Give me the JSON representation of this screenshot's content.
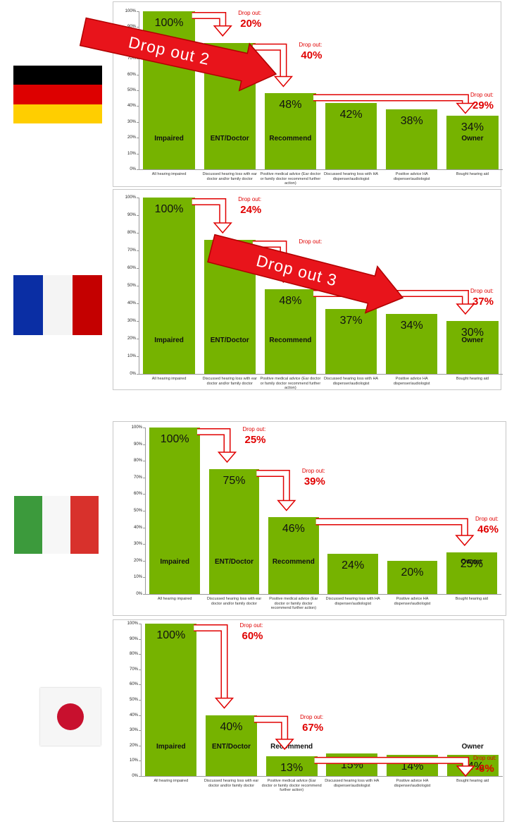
{
  "chart_data": [
    {
      "type": "bar",
      "color": "#76b300",
      "categories": [
        "All hearing impaired",
        "Discussed hearing loss with ear doctor and/or family doctor",
        "Positive medical advice (Ear doctor or family doctor recommend further action)",
        "Discussed hearing loss with HA dispenser/audiologist",
        "Positive advice HA dispenser/audiologist",
        "Bought hearing aid"
      ],
      "values": [
        100,
        80,
        48,
        42,
        38,
        34
      ],
      "value_labels": [
        "100%",
        null,
        "48%",
        "42%",
        "38%",
        "34%"
      ],
      "bar_labels": [
        "Impaired",
        "ENT/Doctor",
        "Recommend",
        null,
        null,
        "Owner"
      ],
      "annotations": [
        {
          "text": "Drop out:",
          "amount": "20%"
        },
        {
          "text": "Drop out:",
          "amount": "40%"
        },
        {
          "text": "Drop out:",
          "amount": "29%"
        }
      ],
      "big_arrow": "Drop out 2",
      "ylim": [
        0,
        100
      ],
      "yticks": [
        {
          "value": 0,
          "label": "0%"
        },
        {
          "value": 10,
          "label": "10%"
        },
        {
          "value": 20,
          "label": "20%"
        },
        {
          "value": 30,
          "label": "30%"
        },
        {
          "value": 40,
          "label": "40%"
        },
        {
          "value": 50,
          "label": "50%"
        },
        {
          "value": 60,
          "label": "60%"
        },
        {
          "value": 70,
          "label": "70%"
        },
        {
          "value": 80,
          "label": "80%"
        },
        {
          "value": 90,
          "label": "90%"
        },
        {
          "value": 100,
          "label": "100%"
        }
      ]
    },
    {
      "type": "bar",
      "color": "#76b300",
      "categories": [
        "All hearing impaired",
        "Discussed hearing loss with ear doctor and/or family doctor",
        "Positive medical advice (Ear doctor or family doctor recommend further action)",
        "Discussed hearing loss with HA dispenser/audiologist",
        "Positive advice HA dispenser/audiologist",
        "Bought hearing aid"
      ],
      "values": [
        100,
        76,
        48,
        37,
        34,
        30
      ],
      "value_labels": [
        "100%",
        null,
        "48%",
        "37%",
        "34%",
        "30%"
      ],
      "bar_labels": [
        "Impaired",
        "ENT/Doctor",
        "Recommend",
        null,
        null,
        "Owner"
      ],
      "annotations": [
        {
          "text": "Drop out:",
          "amount": "24%"
        },
        {
          "text": "Drop out:",
          "amount": null
        },
        {
          "text": "Drop out:",
          "amount": "37%"
        }
      ],
      "big_arrow": "Drop out 3",
      "ylim": [
        0,
        100
      ],
      "yticks": [
        {
          "value": 0,
          "label": "0%"
        },
        {
          "value": 10,
          "label": "10%"
        },
        {
          "value": 20,
          "label": "20%"
        },
        {
          "value": 30,
          "label": "30%"
        },
        {
          "value": 40,
          "label": "40%"
        },
        {
          "value": 50,
          "label": "50%"
        },
        {
          "value": 60,
          "label": "60%"
        },
        {
          "value": 70,
          "label": "70%"
        },
        {
          "value": 80,
          "label": "80%"
        },
        {
          "value": 90,
          "label": "90%"
        },
        {
          "value": 100,
          "label": "100%"
        }
      ]
    },
    {
      "type": "bar",
      "color": "#76b300",
      "categories": [
        "All hearing impaired",
        "Discussed hearing loss with ear doctor and/or family doctor",
        "Positive medical advice (Ear doctor or family doctor recommend further action)",
        "Discussed hearing loss with HA dispenser/audiologist",
        "Positive advice HA dispenser/audiologist",
        "Bought hearing aid"
      ],
      "values": [
        100,
        75,
        46,
        24,
        20,
        25
      ],
      "value_labels": [
        "100%",
        "75%",
        "46%",
        "24%",
        "20%",
        "25%"
      ],
      "bar_labels": [
        "Impaired",
        "ENT/Doctor",
        "Recommend",
        null,
        null,
        "Owner"
      ],
      "annotations": [
        {
          "text": "Drop out:",
          "amount": "25%"
        },
        {
          "text": "Drop out:",
          "amount": "39%"
        },
        {
          "text": "Drop out:",
          "amount": "46%"
        }
      ],
      "ylim": [
        0,
        100
      ],
      "yticks": [
        {
          "value": 0,
          "label": "0%"
        },
        {
          "value": 10,
          "label": "10%"
        },
        {
          "value": 20,
          "label": "20%"
        },
        {
          "value": 30,
          "label": "30%"
        },
        {
          "value": 40,
          "label": "40%"
        },
        {
          "value": 50,
          "label": "50%"
        },
        {
          "value": 60,
          "label": "60%"
        },
        {
          "value": 70,
          "label": "70%"
        },
        {
          "value": 80,
          "label": "80%"
        },
        {
          "value": 90,
          "label": "90%"
        },
        {
          "value": 100,
          "label": "100%"
        }
      ]
    },
    {
      "type": "bar",
      "color": "#76b300",
      "categories": [
        "All hearing impaired",
        "Discussed hearing loss with ear doctor and/or family doctor",
        "Positive medical advice (Ear doctor or family doctor recommend further action)",
        "Discussed hearing loss with HA dispenser/audiologist",
        "Positive advice HA dispenser/audiologist",
        "Bought hearing aid"
      ],
      "values": [
        100,
        40,
        13,
        15,
        14,
        14
      ],
      "value_labels": [
        "100%",
        "40%",
        "13%",
        "15%",
        "14%",
        "14%"
      ],
      "bar_labels": [
        "Impaired",
        "ENT/Doctor",
        "Recommend",
        null,
        null,
        "Owner"
      ],
      "annotations": [
        {
          "text": "Drop out:",
          "amount": "60%"
        },
        {
          "text": "Drop out:",
          "amount": "67%"
        },
        {
          "text": "Drop out:",
          "amount": "-6%"
        }
      ],
      "ylim": [
        0,
        100
      ],
      "yticks": [
        {
          "value": 0,
          "label": "0%"
        },
        {
          "value": 10,
          "label": "10%"
        },
        {
          "value": 20,
          "label": "20%"
        },
        {
          "value": 30,
          "label": "30%"
        },
        {
          "value": 40,
          "label": "40%"
        },
        {
          "value": 50,
          "label": "50%"
        },
        {
          "value": 60,
          "label": "60%"
        },
        {
          "value": 70,
          "label": "70%"
        },
        {
          "value": 80,
          "label": "80%"
        },
        {
          "value": 90,
          "label": "90%"
        },
        {
          "value": 100,
          "label": "100%"
        }
      ]
    }
  ]
}
